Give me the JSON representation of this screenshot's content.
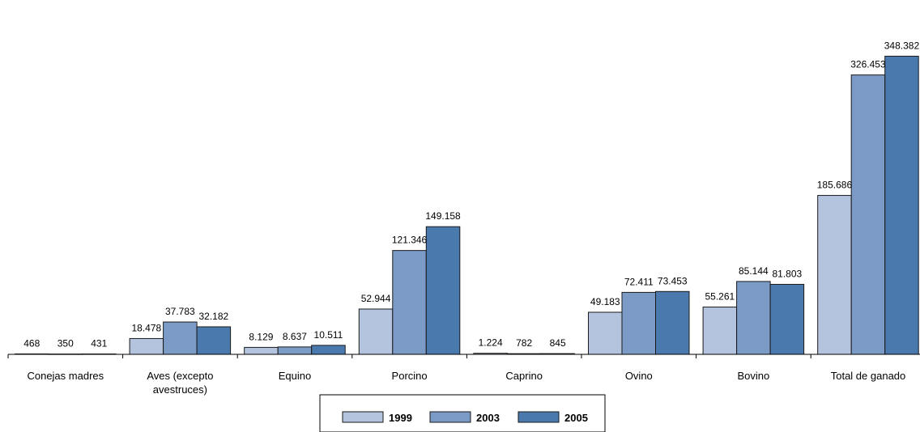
{
  "chart_data": {
    "type": "bar",
    "title": "",
    "xlabel": "",
    "ylabel": "",
    "ylim": [
      0,
      380000
    ],
    "grid": false,
    "legend_position": "bottom-center",
    "categories": [
      [
        "Conejas madres"
      ],
      [
        "Aves (excepto",
        "avestruces)"
      ],
      [
        "Equino"
      ],
      [
        "Porcino"
      ],
      [
        "Caprino"
      ],
      [
        "Ovino"
      ],
      [
        "Bovino"
      ],
      [
        "Total de ganado"
      ]
    ],
    "series": [
      {
        "name": "1999",
        "color": "#b4c4de",
        "values": [
          468,
          18478,
          8129,
          52944,
          1224,
          49183,
          55261,
          185686
        ],
        "value_labels": [
          "468",
          "18.478",
          "8.129",
          "52.944",
          "1.224",
          "49.183",
          "55.261",
          "185.686"
        ]
      },
      {
        "name": "2003",
        "color": "#7b9bc6",
        "values": [
          350,
          37783,
          8637,
          121346,
          782,
          72411,
          85144,
          326453
        ],
        "value_labels": [
          "350",
          "37.783",
          "8.637",
          "121.346",
          "782",
          "72.411",
          "85.144",
          "326.453"
        ]
      },
      {
        "name": "2005",
        "color": "#4a79ae",
        "values": [
          431,
          32182,
          10511,
          149158,
          845,
          73453,
          81803,
          348382
        ],
        "value_labels": [
          "431",
          "32.182",
          "10.511",
          "149.158",
          "845",
          "73.453",
          "81.803",
          "348.382"
        ]
      }
    ]
  }
}
